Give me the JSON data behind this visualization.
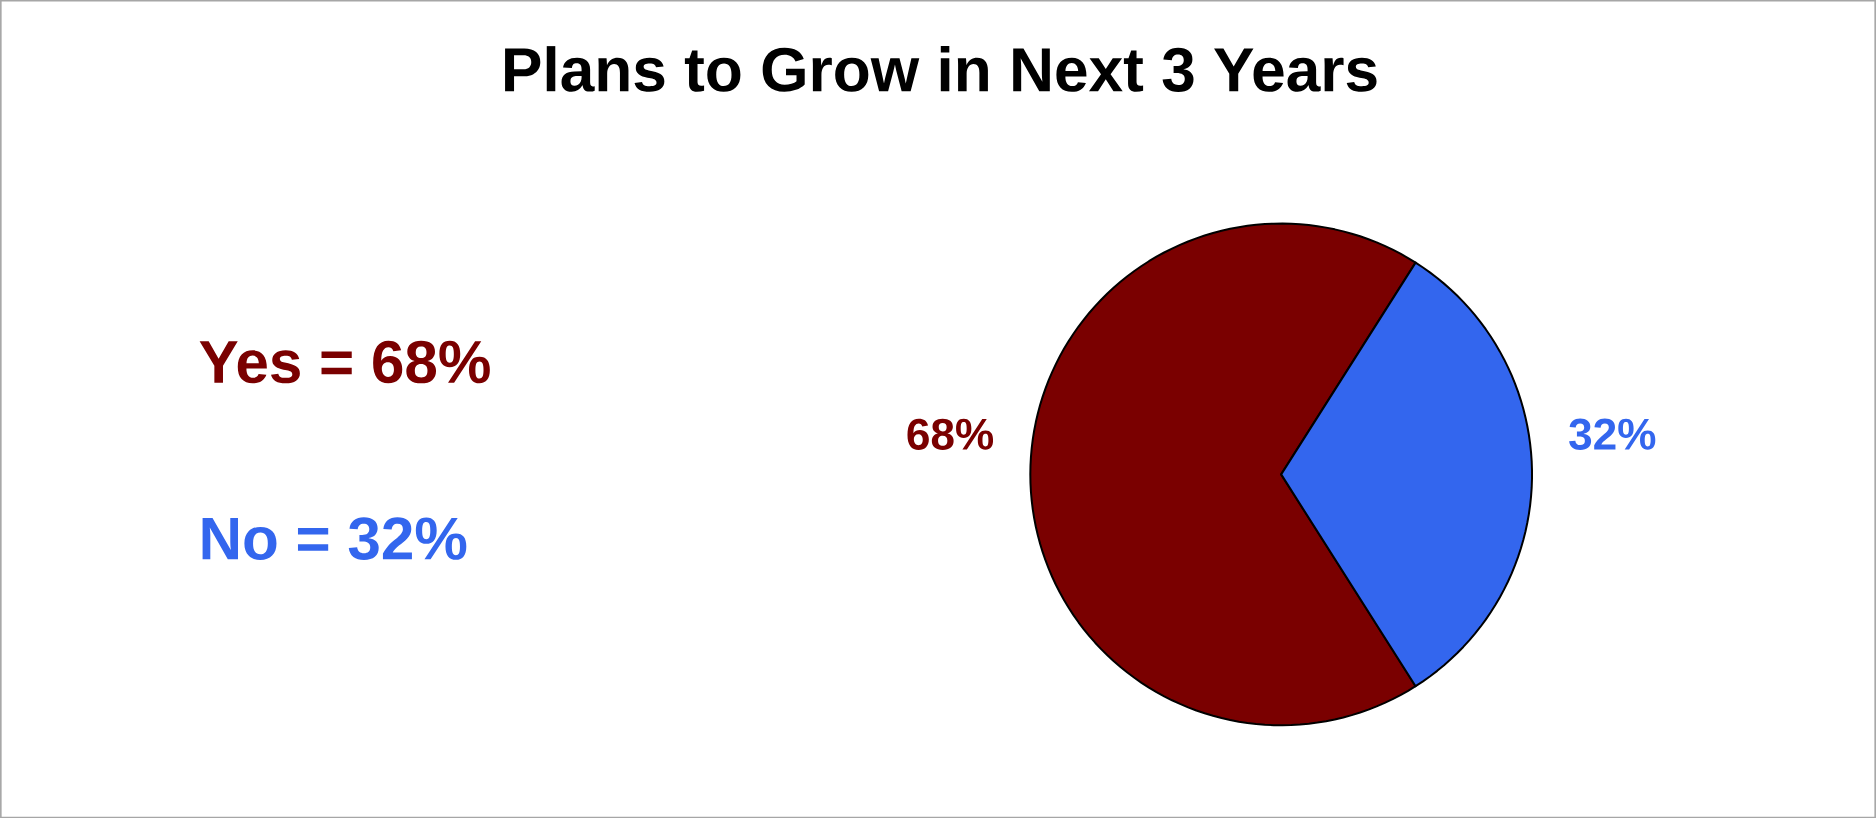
{
  "chart_data": {
    "type": "pie",
    "title": "Plans to Grow in Next 3 Years",
    "categories": [
      null,
      null
    ],
    "values": [
      68,
      32
    ],
    "colors": [
      "#7a0000",
      "#3366ee"
    ],
    "value_labels": [
      "68%",
      "32%"
    ],
    "annotations": [
      "Yes = 68%",
      "No = 32%"
    ]
  }
}
